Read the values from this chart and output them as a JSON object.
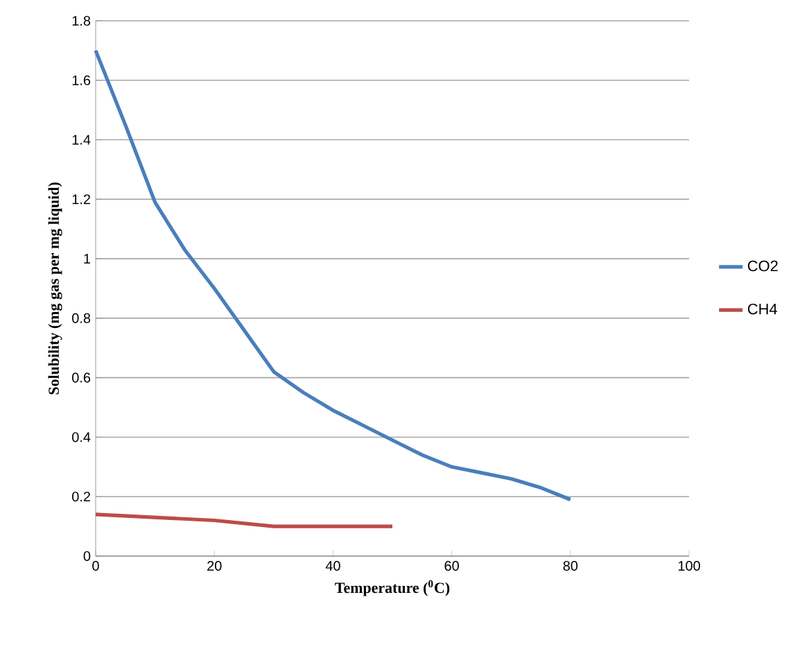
{
  "chart_data": {
    "type": "line",
    "xlabel": "Temperature ($^{0}$C)",
    "ylabel": "Solubility (mg gas per mg liquid)",
    "xlim": [
      0,
      100
    ],
    "xticks": [
      0,
      20,
      40,
      60,
      80,
      100
    ],
    "ylim": [
      0,
      1.8
    ],
    "yticks": [
      0,
      0.2,
      0.4,
      0.6,
      0.8,
      1,
      1.2,
      1.4,
      1.6,
      1.8
    ],
    "grid": "y",
    "legend": "right",
    "marker": "none",
    "line_style": "solid",
    "series": [
      {
        "name": "CO2",
        "color": "#4a7ebb",
        "x": [
          0,
          5,
          10,
          15,
          20,
          25,
          30,
          35,
          40,
          45,
          50,
          55,
          60,
          65,
          70,
          75,
          80
        ],
        "values": [
          1.7,
          1.45,
          1.19,
          1.03,
          0.9,
          0.76,
          0.62,
          0.55,
          0.49,
          0.44,
          0.39,
          0.34,
          0.3,
          0.28,
          0.26,
          0.23,
          0.19
        ]
      },
      {
        "name": "CH4",
        "color": "#be4b48",
        "x": [
          0,
          10,
          20,
          30,
          40,
          50
        ],
        "values": [
          0.14,
          0.13,
          0.12,
          0.1,
          0.1,
          0.1
        ]
      }
    ]
  }
}
